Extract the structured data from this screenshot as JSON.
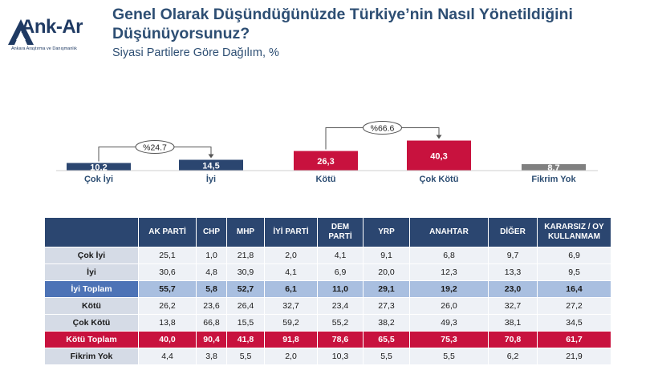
{
  "brand": {
    "name": "Ank-Ar",
    "tagline": "Ankara Araştırma ve Danışmanlık"
  },
  "chart_data": [
    {
      "type": "bar",
      "title": "Genel Olarak Düşündüğünüzde Türkiye’nin Nasıl Yönetildiğini Düşünüyorsunuz?",
      "subtitle": "Siyasi Partilere Göre Dağılım, %",
      "categories": [
        "Çok İyi",
        "İyi",
        "Kötü",
        "Çok Kötü",
        "Fikrim Yok"
      ],
      "values": [
        10.2,
        14.5,
        26.3,
        40.3,
        8.7
      ],
      "value_labels": [
        "10,2",
        "14,5",
        "26,3",
        "40,3",
        "8,7"
      ],
      "colors": [
        "#2b4670",
        "#2b4670",
        "#c8123e",
        "#c8123e",
        "#808080"
      ],
      "annotations": [
        {
          "text": "%24.7",
          "from": "Çok İyi",
          "to": "İyi"
        },
        {
          "text": "%66.6",
          "from": "Kötü",
          "to": "Çok Kötü"
        }
      ],
      "ylim": [
        0,
        45
      ],
      "grid": false
    },
    {
      "type": "table",
      "columns": [
        "AK PARTİ",
        "CHP",
        "MHP",
        "İYİ PARTİ",
        "DEM PARTİ",
        "YRP",
        "ANAHTAR",
        "DİĞER",
        "KARARSIZ / OY KULLANMAM"
      ],
      "rows": [
        {
          "label": "Çok İyi",
          "style": "normal",
          "values": [
            "25,1",
            "1,0",
            "21,8",
            "2,0",
            "4,1",
            "9,1",
            "6,8",
            "9,7",
            "6,9"
          ]
        },
        {
          "label": "İyi",
          "style": "normal",
          "values": [
            "30,6",
            "4,8",
            "30,9",
            "4,1",
            "6,9",
            "20,0",
            "12,3",
            "13,3",
            "9,5"
          ]
        },
        {
          "label": "İyi Toplam",
          "style": "good",
          "values": [
            "55,7",
            "5,8",
            "52,7",
            "6,1",
            "11,0",
            "29,1",
            "19,2",
            "23,0",
            "16,4"
          ]
        },
        {
          "label": "Kötü",
          "style": "normal",
          "values": [
            "26,2",
            "23,6",
            "26,4",
            "32,7",
            "23,4",
            "27,3",
            "26,0",
            "32,7",
            "27,2"
          ]
        },
        {
          "label": "Çok Kötü",
          "style": "normal",
          "values": [
            "13,8",
            "66,8",
            "15,5",
            "59,2",
            "55,2",
            "38,2",
            "49,3",
            "38,1",
            "34,5"
          ]
        },
        {
          "label": "Kötü Toplam",
          "style": "bad",
          "values": [
            "40,0",
            "90,4",
            "41,8",
            "91,8",
            "78,6",
            "65,5",
            "75,3",
            "70,8",
            "61,7"
          ]
        },
        {
          "label": "Fikrim Yok",
          "style": "normal",
          "values": [
            "4,4",
            "3,8",
            "5,5",
            "2,0",
            "10,3",
            "5,5",
            "5,5",
            "6,2",
            "21,9"
          ]
        }
      ]
    }
  ]
}
